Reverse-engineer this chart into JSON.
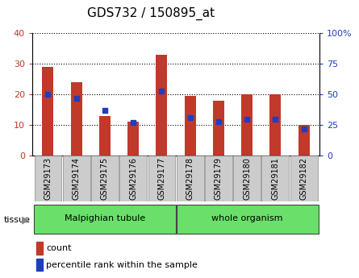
{
  "title": "GDS732 / 150895_at",
  "samples": [
    "GSM29173",
    "GSM29174",
    "GSM29175",
    "GSM29176",
    "GSM29177",
    "GSM29178",
    "GSM29179",
    "GSM29180",
    "GSM29181",
    "GSM29182"
  ],
  "counts": [
    29,
    24,
    13,
    11,
    33,
    19.5,
    18,
    20,
    20,
    10
  ],
  "percentiles": [
    50,
    47,
    37,
    27,
    53,
    31,
    27.5,
    30,
    30,
    22
  ],
  "ylim_left": [
    0,
    40
  ],
  "ylim_right": [
    0,
    100
  ],
  "yticks_left": [
    0,
    10,
    20,
    30,
    40
  ],
  "yticks_right": [
    0,
    25,
    50,
    75,
    100
  ],
  "bar_color": "#C0392B",
  "marker_color": "#1F3EBF",
  "tissue_groups": [
    {
      "label": "Malpighian tubule",
      "start": 0,
      "end": 4
    },
    {
      "label": "whole organism",
      "start": 5,
      "end": 9
    }
  ],
  "tissue_color": "#6AE06A",
  "tissue_label": "tissue",
  "tick_bg_color": "#CCCCCC",
  "legend_count_label": "count",
  "legend_percentile_label": "percentile rank within the sample",
  "title_fontsize": 11,
  "tick_fontsize": 8,
  "label_fontsize": 7
}
